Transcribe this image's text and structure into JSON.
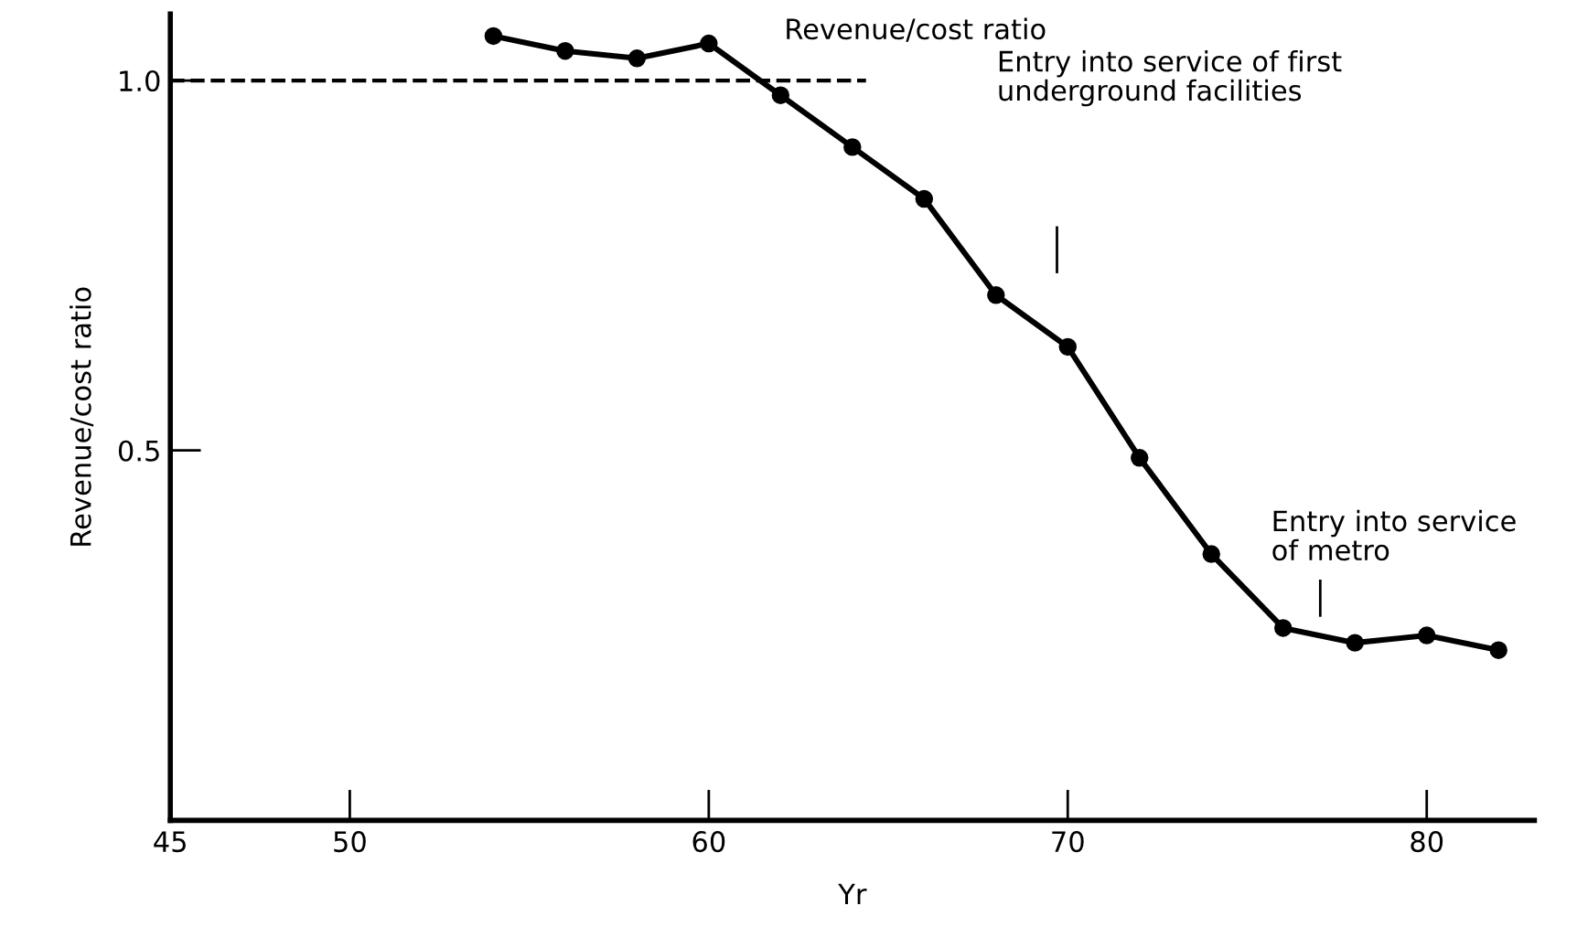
{
  "chart_data": {
    "type": "line",
    "xlabel": "Yr",
    "ylabel": "Revenue/cost ratio",
    "x": [
      54,
      56,
      58,
      60,
      62,
      64,
      66,
      68,
      70,
      72,
      74,
      76,
      78,
      80,
      82
    ],
    "series": [
      {
        "color": "#000000",
        "values": [
          1.06,
          1.04,
          1.03,
          1.05,
          0.98,
          0.91,
          0.84,
          0.71,
          0.64,
          0.49,
          0.36,
          0.26,
          0.24,
          0.25,
          0.23
        ]
      }
    ],
    "xlim": [
      45,
      83
    ],
    "ylim": [
      0,
      1.09
    ],
    "xticks": [
      45,
      50,
      60,
      70,
      80
    ],
    "yticks": [
      {
        "value": 0.5,
        "label": "0.5"
      },
      {
        "value": 1.0,
        "label": "1.0"
      }
    ],
    "ref_lines": [
      {
        "axis": "y",
        "value": 1.0,
        "line_style": "dashed",
        "color": "#000000"
      }
    ],
    "annotations": [
      "Revenue/cost ratio",
      "Entry into service of first\nunderground facilities",
      "Entry into service\nof metro"
    ],
    "marker": "circle",
    "line_style": "solid",
    "grid": false,
    "legend": false
  }
}
